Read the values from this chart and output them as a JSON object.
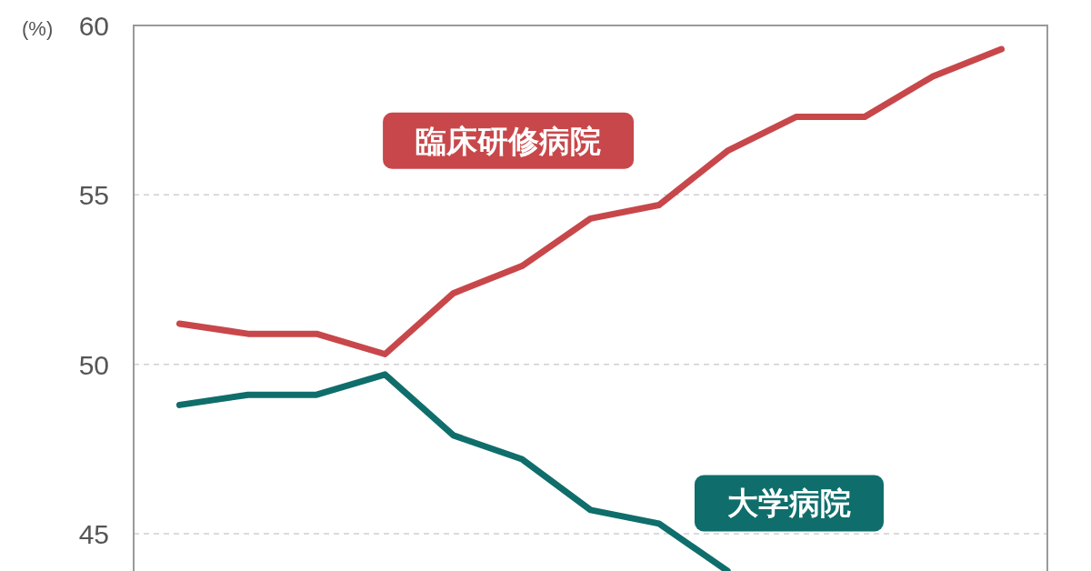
{
  "chart_data": {
    "type": "line",
    "ylabel": "(%)",
    "categories": [
      null,
      null,
      null,
      null,
      null,
      null,
      null,
      null,
      null,
      null,
      null,
      null,
      null
    ],
    "series": [
      {
        "name": "臨床研修病院",
        "color": "#c8474a",
        "values": [
          51.2,
          50.9,
          50.9,
          50.3,
          52.1,
          52.9,
          54.3,
          54.7,
          56.3,
          57.3,
          57.3,
          58.5,
          59.3
        ]
      },
      {
        "name": "大学病院",
        "color": "#0f6e6b",
        "values": [
          48.8,
          49.1,
          49.1,
          49.7,
          47.9,
          47.2,
          45.7,
          45.3,
          43.9,
          null,
          null,
          null,
          null
        ]
      }
    ],
    "ylim": [
      43.9,
      60
    ],
    "yticks": [
      45,
      50,
      55,
      60
    ],
    "grid": "y",
    "marker": "none",
    "line_style": "solid"
  }
}
